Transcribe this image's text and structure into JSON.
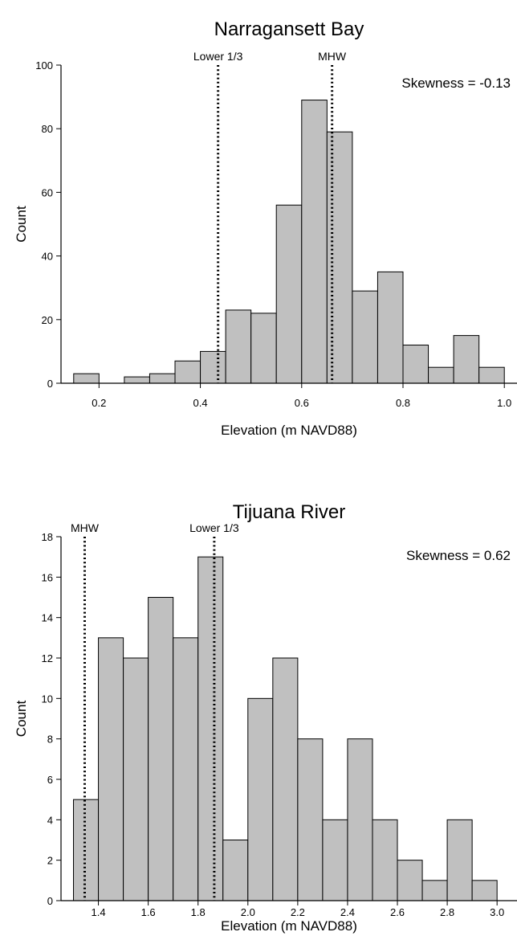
{
  "chart_data": [
    {
      "type": "bar",
      "title": "Narragansett Bay",
      "xlabel": "Elevation (m NAVD88)",
      "ylabel": "Count",
      "xlim": [
        0.125,
        1.025
      ],
      "ylim": [
        0,
        100
      ],
      "xticks": [
        "0.2",
        "0.4",
        "0.6",
        "0.8",
        "1.0"
      ],
      "yticks": [
        "0",
        "20",
        "40",
        "60",
        "80",
        "100"
      ],
      "bin_width": 0.05,
      "bins": [
        {
          "x0": 0.15,
          "count": 3
        },
        {
          "x0": 0.2,
          "count": 0
        },
        {
          "x0": 0.25,
          "count": 2
        },
        {
          "x0": 0.3,
          "count": 3
        },
        {
          "x0": 0.35,
          "count": 7
        },
        {
          "x0": 0.4,
          "count": 10
        },
        {
          "x0": 0.45,
          "count": 23
        },
        {
          "x0": 0.5,
          "count": 22
        },
        {
          "x0": 0.55,
          "count": 56
        },
        {
          "x0": 0.6,
          "count": 89
        },
        {
          "x0": 0.65,
          "count": 79
        },
        {
          "x0": 0.7,
          "count": 29
        },
        {
          "x0": 0.75,
          "count": 35
        },
        {
          "x0": 0.8,
          "count": 12
        },
        {
          "x0": 0.85,
          "count": 5
        },
        {
          "x0": 0.9,
          "count": 15
        },
        {
          "x0": 0.95,
          "count": 5
        }
      ],
      "reference_lines": [
        {
          "label": "Lower 1/3",
          "x": 0.435
        },
        {
          "label": "MHW",
          "x": 0.66
        }
      ],
      "annotation": "Skewness = -0.13",
      "grid": false,
      "legend": "none"
    },
    {
      "type": "bar",
      "title": "Tijuana River",
      "xlabel": "Elevation (m NAVD88)",
      "ylabel": "Count",
      "xlim": [
        1.25,
        3.08
      ],
      "ylim": [
        0,
        18
      ],
      "xticks": [
        "1.4",
        "1.6",
        "1.8",
        "2.0",
        "2.2",
        "2.4",
        "2.6",
        "2.8",
        "3.0"
      ],
      "yticks": [
        "0",
        "2",
        "4",
        "6",
        "8",
        "10",
        "12",
        "14",
        "16",
        "18"
      ],
      "bin_width": 0.1,
      "bins": [
        {
          "x0": 1.3,
          "count": 5
        },
        {
          "x0": 1.4,
          "count": 13
        },
        {
          "x0": 1.5,
          "count": 12
        },
        {
          "x0": 1.6,
          "count": 15
        },
        {
          "x0": 1.7,
          "count": 13
        },
        {
          "x0": 1.8,
          "count": 17
        },
        {
          "x0": 1.9,
          "count": 3
        },
        {
          "x0": 2.0,
          "count": 10
        },
        {
          "x0": 2.1,
          "count": 12
        },
        {
          "x0": 2.2,
          "count": 8
        },
        {
          "x0": 2.3,
          "count": 4
        },
        {
          "x0": 2.4,
          "count": 8
        },
        {
          "x0": 2.5,
          "count": 4
        },
        {
          "x0": 2.6,
          "count": 2
        },
        {
          "x0": 2.7,
          "count": 1
        },
        {
          "x0": 2.8,
          "count": 4
        },
        {
          "x0": 2.9,
          "count": 1
        }
      ],
      "reference_lines": [
        {
          "label": "MHW",
          "x": 1.345
        },
        {
          "label": "Lower 1/3",
          "x": 1.865
        }
      ],
      "annotation": "Skewness = 0.62",
      "grid": false,
      "legend": "none"
    }
  ]
}
